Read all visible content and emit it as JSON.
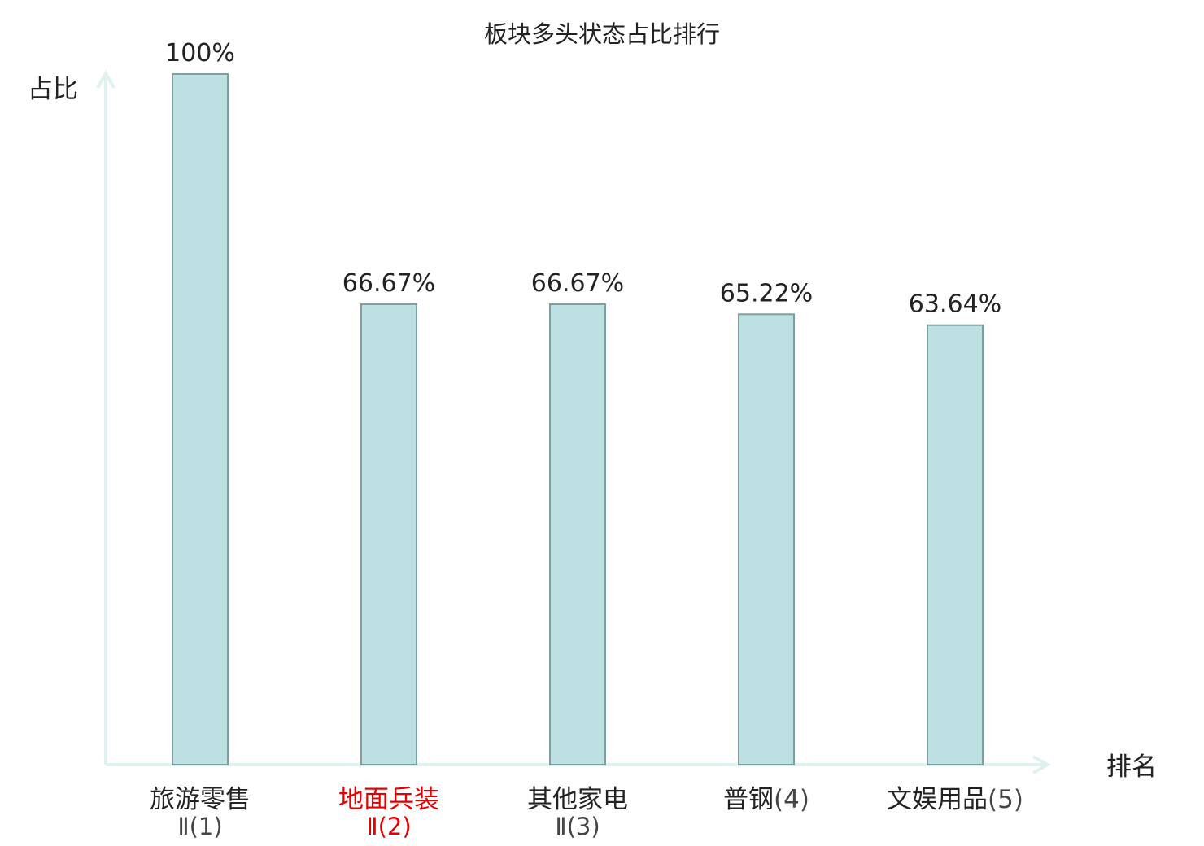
{
  "chart_data": {
    "type": "bar",
    "title": "板块多头状态占比排行",
    "ylabel": "占比",
    "xlabel": "排名",
    "ylim": [
      0,
      100
    ],
    "value_suffix": "%",
    "categories": [
      {
        "name": "旅游零售",
        "suffix": "Ⅱ(1)",
        "highlight": false
      },
      {
        "name": "地面兵装",
        "suffix": "Ⅱ(2)",
        "highlight": true
      },
      {
        "name": "其他家电",
        "suffix": "Ⅱ(3)",
        "highlight": false
      },
      {
        "name": "普钢",
        "suffix": "(4)",
        "highlight": false
      },
      {
        "name": "文娱用品",
        "suffix": "(5)",
        "highlight": false
      }
    ],
    "values": [
      100,
      66.67,
      66.67,
      65.22,
      63.64
    ],
    "value_labels": [
      "100%",
      "66.67%",
      "66.67%",
      "65.22%",
      "63.64%"
    ],
    "grid": false,
    "legend": "none"
  },
  "colors": {
    "bar_fill": "#bde0e2",
    "bar_stroke": "#7e9fa0",
    "axis": "#dff2f0",
    "text": "#222222",
    "highlight": "#e30000",
    "suffix_text": "#444444"
  }
}
